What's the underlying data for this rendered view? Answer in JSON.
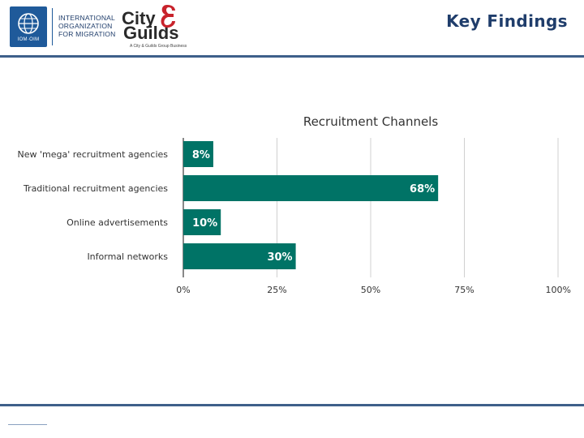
{
  "header": {
    "title": "Key Findings",
    "iom_logo_tag": "IOM·OIM",
    "iom_org_lines": [
      "INTERNATIONAL",
      "ORGANIZATION",
      "FOR MIGRATION"
    ],
    "cg_city": "City",
    "cg_guilds": "Guilds",
    "cg_tagline": "A City & Guilds Group Business"
  },
  "colors": {
    "bar": "#007366",
    "accent_blue": "#1f3d6b",
    "rule": "#3e5f8a",
    "grid": "#d0d0d0"
  },
  "chart_data": {
    "type": "bar",
    "orientation": "horizontal",
    "title": "Recruitment Channels",
    "categories": [
      "New 'mega' recruitment agencies",
      "Traditional recruitment agencies",
      "Online advertisements",
      "Informal networks"
    ],
    "values": [
      8,
      68,
      10,
      30
    ],
    "value_labels": [
      "8%",
      "68%",
      "10%",
      "30%"
    ],
    "xlim": [
      0,
      100
    ],
    "xticks": [
      0,
      25,
      50,
      75,
      100
    ],
    "xtick_labels": [
      "0%",
      "25%",
      "50%",
      "75%",
      "100%"
    ],
    "grid": true,
    "legend": "none"
  }
}
